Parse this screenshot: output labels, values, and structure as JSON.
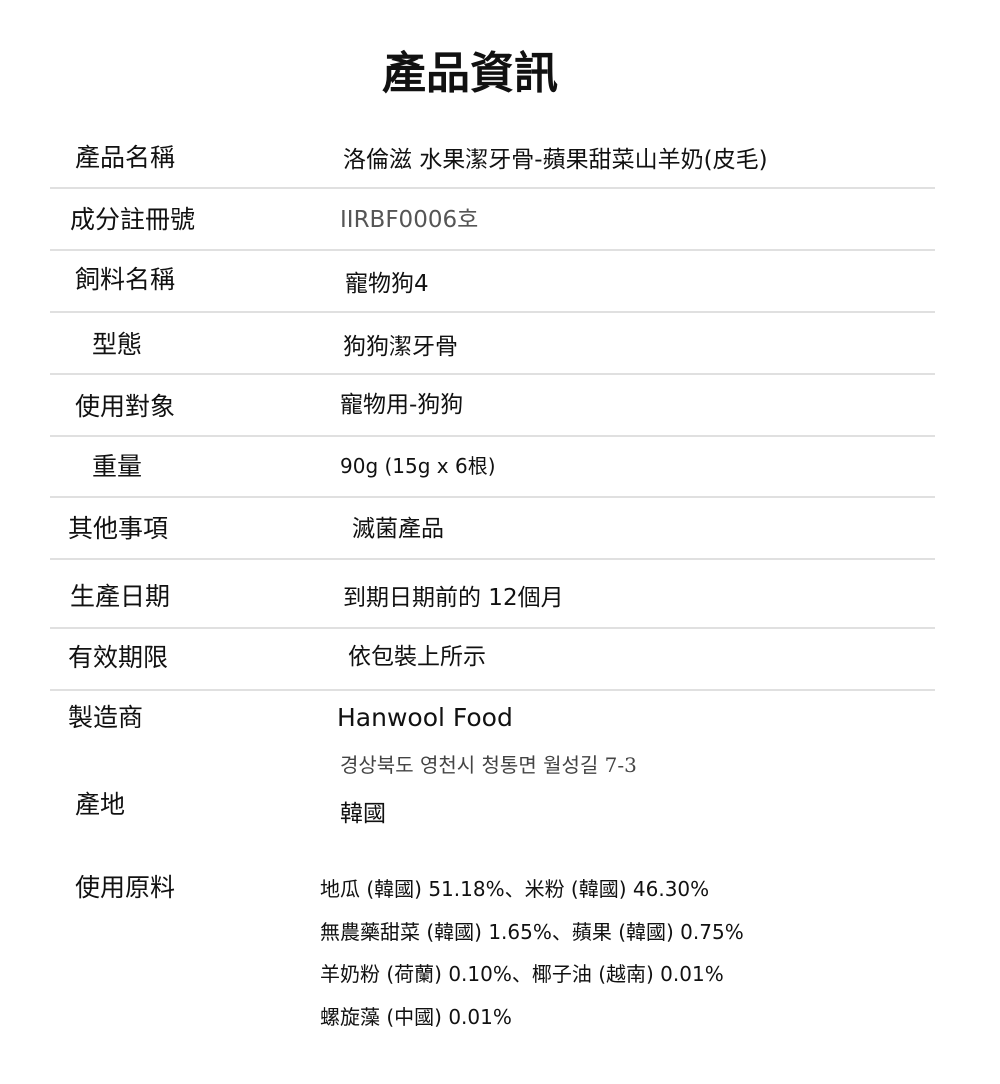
{
  "title": "產品資訊",
  "rows": [
    {
      "label": "產品名稱",
      "value": "洛倫滋 水果潔牙骨-蘋果甜菜山羊奶(皮毛)"
    },
    {
      "label": "成分註冊號",
      "value": "IIRBF0006호"
    },
    {
      "label": "飼料名稱",
      "value": "寵物狗4"
    },
    {
      "label": "型態",
      "value": "狗狗潔牙骨"
    },
    {
      "label": "使用對象",
      "value": "寵物用-狗狗"
    },
    {
      "label": "重量",
      "value": "90g (15g x 6根)"
    },
    {
      "label": "其他事項",
      "value": "滅菌產品"
    },
    {
      "label": "生產日期",
      "value": "到期日期前的 12個月"
    },
    {
      "label": "有效期限",
      "value": "依包裝上所示"
    },
    {
      "label": "製造商",
      "value": "Hanwool Food",
      "address": "경상북도 영천시 청통면 월성길 7-3"
    },
    {
      "label": "產地",
      "value": "韓國"
    },
    {
      "label": "使用原料",
      "lines": [
        "地瓜 (韓國) 51.18%、米粉 (韓國) 46.30%",
        "無農藥甜菜 (韓國) 1.65%、蘋果 (韓國) 0.75%",
        "羊奶粉 (荷蘭) 0.10%、椰子油 (越南) 0.01%",
        "螺旋藻 (中國) 0.01%"
      ]
    }
  ]
}
